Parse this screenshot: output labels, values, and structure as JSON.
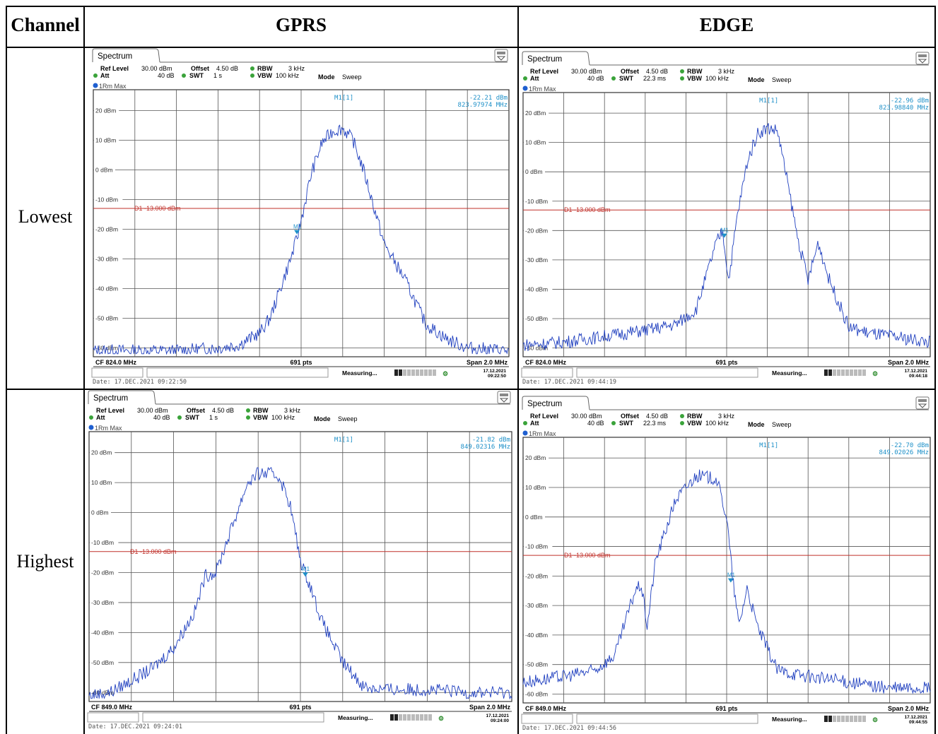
{
  "table": {
    "headers": [
      "Channel",
      "GPRS",
      "EDGE"
    ],
    "rows": [
      "Lowest",
      "Highest"
    ]
  },
  "colors": {
    "trace": "#1f3fbf",
    "limit": "#c0302a",
    "marker": "#1e90c8",
    "panel_border": "#555555"
  },
  "panels": [
    {
      "id": "gprs-lowest",
      "tab": "Spectrum",
      "ref_level": "Ref Level",
      "ref_level_val": "30.00 dBm",
      "offset": "Offset",
      "offset_val": "4.50 dB",
      "rbw": "RBW",
      "rbw_val": "3 kHz",
      "att": "Att",
      "att_val": "40 dB",
      "swt": "SWT",
      "swt_val": "1 s",
      "vbw": "VBW",
      "vbw_val": "100 kHz",
      "mode": "Mode",
      "mode_val": "Sweep",
      "trace_label": "1Rm Max",
      "marker_name": "M1[1]",
      "marker_level": "-22.21 dBm",
      "marker_freq": "823.97974 MHz",
      "limit_label": "D1 -13.000 dBm",
      "cf": "CF 824.0 MHz",
      "pts": "691 pts",
      "span": "Span 2.0 MHz",
      "status": "Measuring...",
      "stamp_date": "17.12.2021",
      "stamp_time": "09:22:50",
      "date_line": "Date: 17.DEC.2021  09:22:50",
      "marker_label": "M1"
    },
    {
      "id": "edge-lowest",
      "tab": "Spectrum",
      "ref_level": "Ref Level",
      "ref_level_val": "30.00 dBm",
      "offset": "Offset",
      "offset_val": "4.50 dB",
      "rbw": "RBW",
      "rbw_val": "3 kHz",
      "att": "Att",
      "att_val": "40 dB",
      "swt": "SWT",
      "swt_val": "22.3 ms",
      "vbw": "VBW",
      "vbw_val": "100 kHz",
      "mode": "Mode",
      "mode_val": "Sweep",
      "trace_label": "1Rm Max",
      "marker_name": "M1[1]",
      "marker_level": "-22.96 dBm",
      "marker_freq": "823.98840 MHz",
      "limit_label": "D1 -13.000 dBm",
      "cf": "CF 824.0 MHz",
      "pts": "691 pts",
      "span": "Span 2.0 MHz",
      "status": "Measuring...",
      "stamp_date": "17.12.2021",
      "stamp_time": "09:44:18",
      "date_line": "Date: 17.DEC.2021  09:44:19",
      "marker_label": "M1"
    },
    {
      "id": "gprs-highest",
      "tab": "Spectrum",
      "ref_level": "Ref Level",
      "ref_level_val": "30.00 dBm",
      "offset": "Offset",
      "offset_val": "4.50 dB",
      "rbw": "RBW",
      "rbw_val": "3 kHz",
      "att": "Att",
      "att_val": "40 dB",
      "swt": "SWT",
      "swt_val": "1 s",
      "vbw": "VBW",
      "vbw_val": "100 kHz",
      "mode": "Mode",
      "mode_val": "Sweep",
      "trace_label": "1Rm Max",
      "marker_name": "M1[1]",
      "marker_level": "-21.82 dBm",
      "marker_freq": "849.02316 MHz",
      "limit_label": "D1 -13.000 dBm",
      "cf": "CF 849.0 MHz",
      "pts": "691 pts",
      "span": "Span 2.0 MHz",
      "status": "Measuring...",
      "stamp_date": "17.12.2021",
      "stamp_time": "09:24:00",
      "date_line": "Date: 17.DEC.2021  09:24:01",
      "marker_label": "M1"
    },
    {
      "id": "edge-highest",
      "tab": "Spectrum",
      "ref_level": "Ref Level",
      "ref_level_val": "30.00 dBm",
      "offset": "Offset",
      "offset_val": "4.50 dB",
      "rbw": "RBW",
      "rbw_val": "3 kHz",
      "att": "Att",
      "att_val": "40 dB",
      "swt": "SWT",
      "swt_val": "22.3 ms",
      "vbw": "VBW",
      "vbw_val": "100 kHz",
      "mode": "Mode",
      "mode_val": "Sweep",
      "trace_label": "1Rm Max",
      "marker_name": "M1[1]",
      "marker_level": "-22.70 dBm",
      "marker_freq": "849.02026 MHz",
      "limit_label": "D1 -13.000 dBm",
      "cf": "CF 849.0 MHz",
      "pts": "691 pts",
      "span": "Span 2.0 MHz",
      "status": "Measuring...",
      "stamp_date": "17.12.2021",
      "stamp_time": "09:44:55",
      "date_line": "Date: 17.DEC.2021  09:44:56",
      "marker_label": "M1"
    }
  ],
  "chart_data": [
    {
      "type": "line",
      "x_unit": "MHz",
      "xlim": [
        823.0,
        825.0
      ],
      "ylim": [
        -63,
        27
      ],
      "y_ticks": [
        "20 dBm",
        "10 dBm",
        "0 dBm",
        "-10 dBm",
        "-20 dBm",
        "-30 dBm",
        "-40 dBm",
        "-50 dBm",
        "-60 dBm"
      ],
      "y_tick_values": [
        20,
        10,
        0,
        -10,
        -20,
        -30,
        -40,
        -50,
        -60
      ],
      "limit_dbm": -13,
      "marker": {
        "x": 823.97974,
        "y": -22.21
      },
      "x": [
        823.0,
        823.2,
        823.4,
        823.6,
        823.7,
        823.8,
        823.85,
        823.9,
        823.95,
        823.98,
        824.0,
        824.05,
        824.1,
        824.15,
        824.2,
        824.25,
        824.3,
        824.4,
        824.5,
        824.6,
        824.7,
        824.8,
        825.0
      ],
      "y": [
        -61,
        -61,
        -61,
        -60,
        -59,
        -55,
        -50,
        -40,
        -30,
        -23,
        -17,
        -1,
        9,
        13,
        14,
        10,
        0,
        -25,
        -37,
        -52,
        -57,
        -60,
        -61
      ]
    },
    {
      "type": "line",
      "x_unit": "MHz",
      "xlim": [
        823.0,
        825.0
      ],
      "ylim": [
        -63,
        27
      ],
      "y_ticks": [
        "20 dBm",
        "10 dBm",
        "0 dBm",
        "-10 dBm",
        "-20 dBm",
        "-30 dBm",
        "-40 dBm",
        "-50 dBm",
        "-60 dBm"
      ],
      "y_tick_values": [
        20,
        10,
        0,
        -10,
        -20,
        -30,
        -40,
        -50,
        -60
      ],
      "limit_dbm": -13,
      "marker": {
        "x": 823.9884,
        "y": -22.96
      },
      "x": [
        823.0,
        823.2,
        823.4,
        823.6,
        823.75,
        823.85,
        823.95,
        823.98,
        824.01,
        824.05,
        824.1,
        824.15,
        824.2,
        824.25,
        824.3,
        824.35,
        824.4,
        824.45,
        824.5,
        824.6,
        824.7,
        824.8,
        825.0
      ],
      "y": [
        -59,
        -58,
        -56,
        -54,
        -52,
        -47,
        -24,
        -20,
        -37,
        -16,
        3,
        13,
        15,
        14,
        -4,
        -23,
        -37,
        -24,
        -36,
        -53,
        -55,
        -56,
        -58
      ]
    },
    {
      "type": "line",
      "x_unit": "MHz",
      "xlim": [
        848.0,
        850.0
      ],
      "ylim": [
        -63,
        27
      ],
      "y_ticks": [
        "20 dBm",
        "10 dBm",
        "0 dBm",
        "-10 dBm",
        "-20 dBm",
        "-30 dBm",
        "-40 dBm",
        "-50 dBm",
        "-60 dBm"
      ],
      "y_tick_values": [
        20,
        10,
        0,
        -10,
        -20,
        -30,
        -40,
        -50,
        -60
      ],
      "limit_dbm": -13,
      "marker": {
        "x": 849.02316,
        "y": -21.82
      },
      "x": [
        848.0,
        848.1,
        848.2,
        848.3,
        848.4,
        848.5,
        848.55,
        848.6,
        848.7,
        848.75,
        848.8,
        848.85,
        848.9,
        848.95,
        849.0,
        849.05,
        849.1,
        849.2,
        849.3,
        849.4,
        849.6,
        849.8,
        850.0
      ],
      "y": [
        -61,
        -60,
        -56,
        -52,
        -45,
        -33,
        -21,
        -20,
        0,
        10,
        13,
        13,
        12,
        3,
        -16,
        -25,
        -36,
        -50,
        -58,
        -59,
        -59,
        -60,
        -60
      ]
    },
    {
      "type": "line",
      "x_unit": "MHz",
      "xlim": [
        848.0,
        850.0
      ],
      "ylim": [
        -63,
        27
      ],
      "y_ticks": [
        "20 dBm",
        "10 dBm",
        "0 dBm",
        "-10 dBm",
        "-20 dBm",
        "-30 dBm",
        "-40 dBm",
        "-50 dBm",
        "-60 dBm"
      ],
      "y_tick_values": [
        20,
        10,
        0,
        -10,
        -20,
        -30,
        -40,
        -50,
        -60
      ],
      "limit_dbm": -13,
      "marker": {
        "x": 849.02026,
        "y": -22.7
      },
      "x": [
        848.0,
        848.2,
        848.35,
        848.45,
        848.55,
        848.58,
        848.61,
        848.65,
        848.75,
        848.85,
        848.95,
        849.0,
        849.03,
        849.06,
        849.1,
        849.15,
        849.25,
        849.4,
        849.6,
        849.8,
        850.0
      ],
      "y": [
        -56,
        -54,
        -52,
        -47,
        -25,
        -23,
        -37,
        -15,
        6,
        14,
        13,
        0,
        -21,
        -37,
        -24,
        -37,
        -52,
        -54,
        -56,
        -58,
        -58
      ]
    }
  ]
}
